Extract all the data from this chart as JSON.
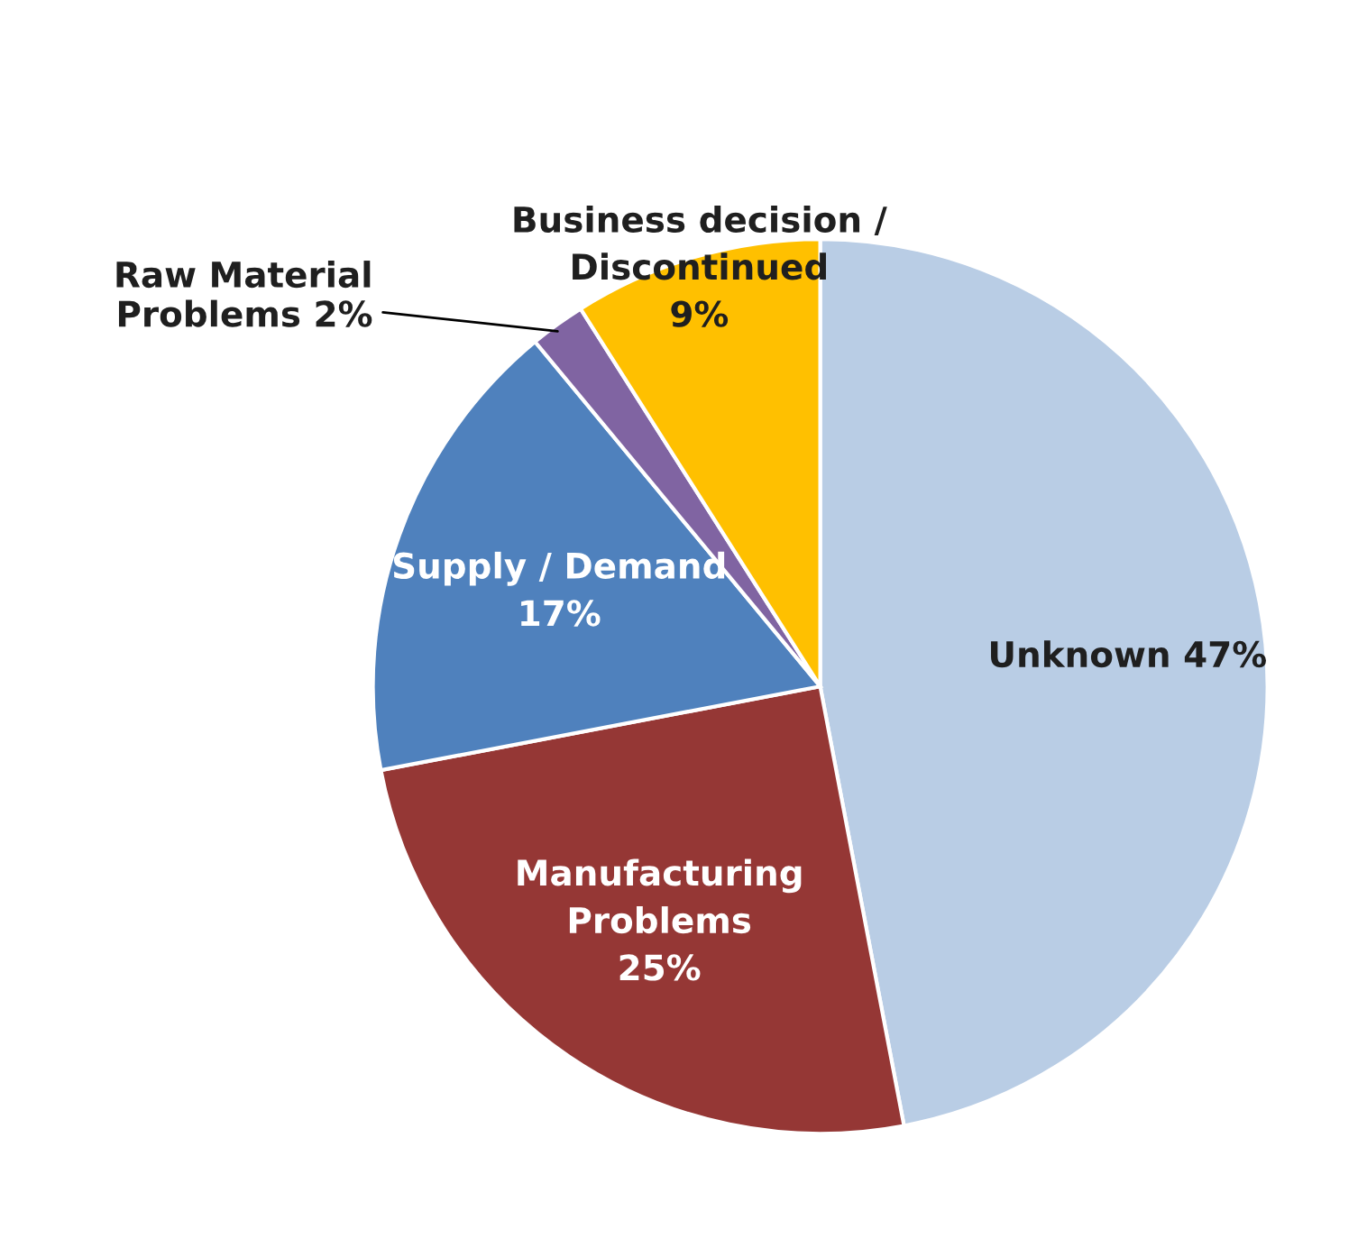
{
  "chart_data": {
    "type": "pie",
    "categories": [
      "Unknown",
      "Manufacturing\nProblems",
      "Supply / Demand",
      "Raw Material\nProblems",
      "Business decision /\nDiscontinued"
    ],
    "values": [
      47,
      25,
      17,
      2,
      9
    ],
    "value_labels": [
      "47%",
      "25%",
      "17%",
      "2%",
      "9%"
    ],
    "colors": [
      "#b9cde5",
      "#953735",
      "#4f81bd",
      "#8064a2",
      "#ffc000"
    ],
    "legend": false
  }
}
